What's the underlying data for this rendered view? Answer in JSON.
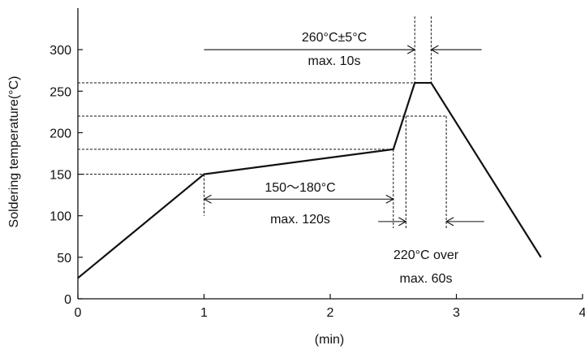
{
  "chart_data": {
    "type": "line",
    "xlabel": "(min)",
    "ylabel": "Soldering temperature(°C)",
    "xlim": [
      0,
      4
    ],
    "ylim": [
      0,
      350
    ],
    "xticks": [
      0,
      1,
      2,
      3,
      4
    ],
    "yticks": [
      0,
      50,
      100,
      150,
      200,
      250,
      300
    ],
    "grid": false,
    "series": [
      {
        "x": [
          0,
          1,
          2.5,
          2.67,
          2.8,
          3.67
        ],
        "y": [
          25,
          150,
          180,
          260,
          260,
          50
        ]
      }
    ],
    "reference_lines": [
      150,
      180,
      220,
      260
    ],
    "annotations": [
      {
        "text": "260°C±5°C",
        "line2": "max. 10s",
        "span": [
          2.67,
          2.8
        ],
        "arrow_y": 300
      },
      {
        "text": "150〜180°C",
        "line2": "max. 120s",
        "span": [
          1,
          2.5
        ],
        "arrow_y": 120
      },
      {
        "text": "220°C over",
        "line2": "max. 60s",
        "span": [
          2.6,
          2.92
        ],
        "arrow_y": 93
      }
    ]
  },
  "colors": {
    "line": "#111111",
    "axis": "#111111"
  }
}
